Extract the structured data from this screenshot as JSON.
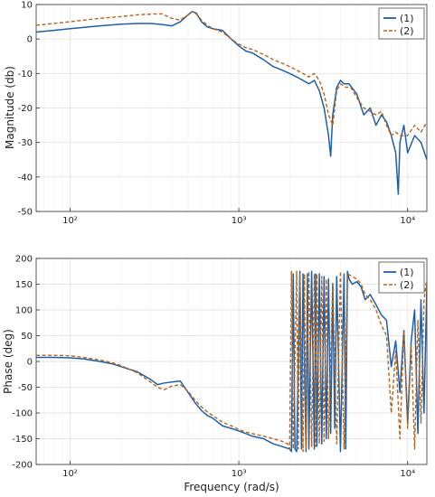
{
  "colors": {
    "series1": "#1f5fa8",
    "series2": "#b5651d",
    "grid": "#e6e6e6",
    "minor_grid": "#f2f2f2",
    "axis": "#333333"
  },
  "chart_data": [
    {
      "type": "line",
      "xscale": "log",
      "xlim": [
        63,
        13000
      ],
      "ylim": [
        -50,
        10
      ],
      "xticks": [
        100,
        1000,
        10000
      ],
      "xtick_labels": [
        "10²",
        "10³",
        "10⁴"
      ],
      "yticks": [
        10,
        0,
        -10,
        -20,
        -30,
        -40,
        -50
      ],
      "ylabel": "Magnitude (db)",
      "xlabel": "",
      "grid": true,
      "legend": "top-right",
      "series": [
        {
          "name": "(1)",
          "style": "solid",
          "x": [
            63,
            80,
            100,
            150,
            200,
            250,
            300,
            350,
            400,
            450,
            500,
            530,
            560,
            600,
            650,
            700,
            800,
            900,
            1000,
            1100,
            1200,
            1400,
            1600,
            1800,
            2000,
            2200,
            2400,
            2600,
            2800,
            3000,
            3200,
            3400,
            3500,
            3600,
            3800,
            4000,
            4200,
            4500,
            5000,
            5500,
            6000,
            6500,
            7000,
            7500,
            8000,
            8500,
            8800,
            9000,
            9500,
            10000,
            11000,
            12000,
            13000
          ],
          "y": [
            2,
            2.5,
            3,
            3.8,
            4.3,
            4.5,
            4.5,
            4.2,
            3.8,
            5,
            7,
            8,
            7.5,
            5,
            3.5,
            3,
            2.5,
            0,
            -2,
            -3.5,
            -4,
            -6,
            -8,
            -9,
            -10,
            -11,
            -12,
            -13,
            -12,
            -15,
            -20,
            -28,
            -34,
            -22,
            -14,
            -12,
            -13,
            -13,
            -16,
            -22,
            -20,
            -25,
            -22,
            -24,
            -28,
            -33,
            -45,
            -30,
            -25,
            -33,
            -28,
            -30,
            -35
          ]
        },
        {
          "name": "(2)",
          "style": "dashed",
          "x": [
            63,
            80,
            100,
            150,
            200,
            250,
            300,
            350,
            400,
            450,
            500,
            530,
            560,
            600,
            650,
            700,
            800,
            900,
            1000,
            1100,
            1200,
            1400,
            1600,
            1800,
            2000,
            2200,
            2400,
            2600,
            2800,
            3000,
            3200,
            3400,
            3600,
            3800,
            4000,
            4300,
            4600,
            5000,
            5500,
            6000,
            6500,
            7000,
            7500,
            8000,
            8500,
            9000,
            10000,
            11000,
            12000,
            13000
          ],
          "y": [
            4,
            4.5,
            5,
            6,
            6.5,
            7,
            7.2,
            7.3,
            6,
            5.5,
            7,
            8,
            7.2,
            5.5,
            4,
            3,
            2,
            0,
            -1.5,
            -2.5,
            -3,
            -4.5,
            -6,
            -7,
            -8,
            -9,
            -10,
            -11,
            -10,
            -12,
            -16,
            -22,
            -25,
            -15,
            -13,
            -14,
            -14,
            -17,
            -20,
            -21,
            -22,
            -21,
            -25,
            -28,
            -27,
            -28,
            -28,
            -25,
            -27,
            -24
          ]
        }
      ]
    },
    {
      "type": "line",
      "xscale": "log",
      "xlim": [
        63,
        13000
      ],
      "ylim": [
        -200,
        200
      ],
      "xticks": [
        100,
        1000,
        10000
      ],
      "xtick_labels": [
        "10²",
        "10³",
        "10⁴"
      ],
      "yticks": [
        200,
        150,
        100,
        50,
        0,
        -50,
        -100,
        -150,
        -200
      ],
      "ylabel": "Phase (deg)",
      "xlabel": "Frequency (rad/s)",
      "grid": true,
      "legend": "top-right",
      "series": [
        {
          "name": "(1)",
          "style": "solid",
          "x": [
            63,
            80,
            100,
            120,
            150,
            180,
            200,
            250,
            300,
            330,
            360,
            400,
            450,
            500,
            550,
            600,
            650,
            700,
            800,
            900,
            1000,
            1100,
            1200,
            1400,
            1600,
            1800,
            2000,
            2050,
            2100,
            2150,
            2200,
            2300,
            2350,
            2400,
            2500,
            2550,
            2600,
            2700,
            2800,
            2850,
            2900,
            3000,
            3100,
            3200,
            3300,
            3400,
            3500,
            3600,
            3700,
            3800,
            4000,
            4200,
            4300,
            4400,
            4500,
            4700,
            5000,
            5300,
            5600,
            6000,
            6500,
            7000,
            7500,
            8000,
            8500,
            9000,
            9500,
            10000,
            10500,
            11000,
            11500,
            12000,
            12500,
            13000
          ],
          "y": [
            8,
            8,
            7,
            5,
            0,
            -5,
            -10,
            -20,
            -35,
            -45,
            -42,
            -40,
            -38,
            -60,
            -80,
            -95,
            -105,
            -110,
            -125,
            -130,
            -135,
            -140,
            -145,
            -150,
            -160,
            -165,
            -170,
            -175,
            170,
            -170,
            -175,
            175,
            -170,
            170,
            -175,
            170,
            -170,
            175,
            -170,
            170,
            -165,
            170,
            -160,
            165,
            -150,
            160,
            -140,
            150,
            -130,
            165,
            -175,
            170,
            -170,
            175,
            160,
            150,
            155,
            145,
            120,
            130,
            110,
            90,
            80,
            -10,
            40,
            -60,
            60,
            -120,
            40,
            100,
            -140,
            120,
            -100,
            150
          ]
        },
        {
          "name": "(2)",
          "style": "dashed",
          "x": [
            63,
            80,
            100,
            120,
            150,
            180,
            200,
            250,
            300,
            330,
            360,
            400,
            450,
            500,
            550,
            600,
            650,
            700,
            800,
            900,
            1000,
            1100,
            1200,
            1400,
            1600,
            1800,
            1950,
            2000,
            2050,
            2100,
            2200,
            2250,
            2300,
            2400,
            2450,
            2500,
            2600,
            2700,
            2800,
            2850,
            2900,
            3000,
            3100,
            3200,
            3300,
            3400,
            3600,
            3800,
            4000,
            4200,
            4400,
            4700,
            5000,
            5300,
            5600,
            6000,
            6500,
            7000,
            7500,
            8000,
            8500,
            9000,
            9500,
            10000,
            10500,
            11000,
            11500,
            12000,
            12500,
            13000
          ],
          "y": [
            12,
            12,
            11,
            8,
            3,
            -3,
            -8,
            -22,
            -40,
            -50,
            -55,
            -48,
            -45,
            -58,
            -75,
            -88,
            -98,
            -105,
            -118,
            -125,
            -132,
            -137,
            -140,
            -145,
            -150,
            -155,
            -160,
            -170,
            175,
            -170,
            175,
            -170,
            170,
            -175,
            170,
            -170,
            175,
            -165,
            170,
            -165,
            170,
            -160,
            165,
            -155,
            160,
            -150,
            155,
            -160,
            175,
            -170,
            170,
            165,
            160,
            150,
            130,
            120,
            100,
            70,
            50,
            -100,
            20,
            -150,
            60,
            -130,
            30,
            -170,
            80,
            -120,
            120,
            160
          ]
        }
      ]
    }
  ]
}
